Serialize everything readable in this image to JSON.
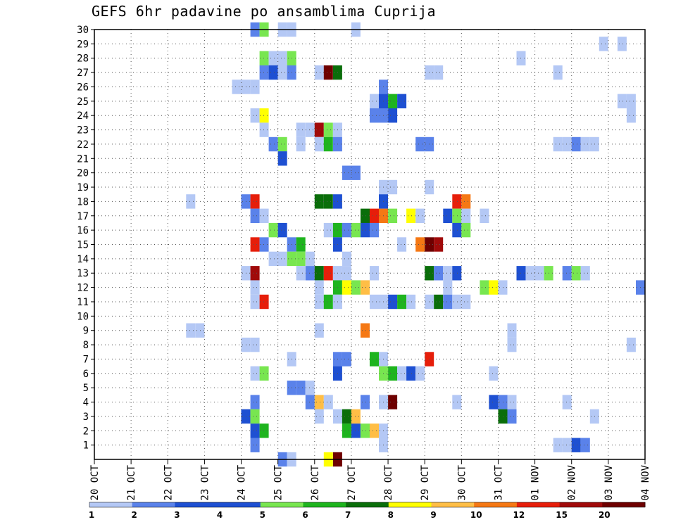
{
  "chart_data": {
    "type": "heatmap",
    "title": "GEFS 6hr padavine po ansamblima Cuprija",
    "x_tick_labels": [
      "20 OCT",
      "21 OCT",
      "22 OCT",
      "23 OCT",
      "24 OCT",
      "25 OCT",
      "26 OCT",
      "27 OCT",
      "28 OCT",
      "29 OCT",
      "30 OCT",
      "31 OCT",
      "01 NOV",
      "02 NOV",
      "03 NOV",
      "04 NOV"
    ],
    "x_range_days": [
      0,
      15
    ],
    "y_tick_labels": [
      "1",
      "2",
      "3",
      "4",
      "5",
      "6",
      "7",
      "8",
      "9",
      "10",
      "11",
      "12",
      "13",
      "14",
      "15",
      "16",
      "17",
      "18",
      "19",
      "20",
      "21",
      "22",
      "23",
      "24",
      "25",
      "26",
      "27",
      "28",
      "29",
      "30"
    ],
    "y_range": [
      0,
      30
    ],
    "grid": true,
    "colorbar": {
      "labels": [
        "1",
        "2",
        "3",
        "4",
        "5",
        "6",
        "7",
        "8",
        "9",
        "10",
        "12",
        "15",
        "20"
      ],
      "colors": [
        "#b4c8f5",
        "#5a82ea",
        "#1e50d2",
        "#1e50d2",
        "#78e650",
        "#1eb41e",
        "#0a6e0a",
        "#ffff00",
        "#ffbe46",
        "#f57814",
        "#e61e0a",
        "#a00a0a",
        "#6e0000"
      ]
    },
    "cell_width_days": 0.25,
    "cells": [
      [
        4.25,
        30,
        1
      ],
      [
        4.5,
        30,
        4
      ],
      [
        5.0,
        30,
        0
      ],
      [
        5.25,
        30,
        0
      ],
      [
        7.0,
        30,
        0
      ],
      [
        13.75,
        29,
        0
      ],
      [
        14.25,
        29,
        0
      ],
      [
        4.5,
        28,
        4
      ],
      [
        4.75,
        28,
        0
      ],
      [
        5.0,
        28,
        0
      ],
      [
        5.25,
        28,
        4
      ],
      [
        11.5,
        28,
        0
      ],
      [
        4.5,
        27,
        1
      ],
      [
        4.75,
        27,
        2
      ],
      [
        5.0,
        27,
        0
      ],
      [
        5.25,
        27,
        1
      ],
      [
        6.0,
        27,
        0
      ],
      [
        6.25,
        27,
        12
      ],
      [
        6.5,
        27,
        6
      ],
      [
        9.0,
        27,
        0
      ],
      [
        9.25,
        27,
        0
      ],
      [
        12.5,
        27,
        0
      ],
      [
        3.75,
        26,
        0
      ],
      [
        4.0,
        26,
        0
      ],
      [
        4.25,
        26,
        0
      ],
      [
        7.75,
        26,
        1
      ],
      [
        7.5,
        25,
        0
      ],
      [
        7.75,
        25,
        2
      ],
      [
        8.0,
        25,
        5
      ],
      [
        8.25,
        25,
        2
      ],
      [
        14.25,
        25,
        0
      ],
      [
        14.5,
        25,
        0
      ],
      [
        4.25,
        24,
        0
      ],
      [
        4.5,
        24,
        7
      ],
      [
        7.5,
        24,
        1
      ],
      [
        7.75,
        24,
        1
      ],
      [
        8.0,
        24,
        2
      ],
      [
        14.5,
        24,
        0
      ],
      [
        4.5,
        23,
        0
      ],
      [
        5.5,
        23,
        0
      ],
      [
        5.75,
        23,
        0
      ],
      [
        6.0,
        23,
        11
      ],
      [
        6.25,
        23,
        4
      ],
      [
        6.5,
        23,
        0
      ],
      [
        4.75,
        22,
        1
      ],
      [
        5.0,
        22,
        4
      ],
      [
        5.5,
        22,
        0
      ],
      [
        6.0,
        22,
        0
      ],
      [
        6.25,
        22,
        5
      ],
      [
        6.5,
        22,
        1
      ],
      [
        8.75,
        22,
        1
      ],
      [
        9.0,
        22,
        1
      ],
      [
        12.5,
        22,
        0
      ],
      [
        12.75,
        22,
        0
      ],
      [
        13.0,
        22,
        1
      ],
      [
        13.25,
        22,
        0
      ],
      [
        13.5,
        22,
        0
      ],
      [
        5.0,
        21,
        2
      ],
      [
        6.75,
        20,
        1
      ],
      [
        7.0,
        20,
        1
      ],
      [
        7.75,
        19,
        0
      ],
      [
        8.0,
        19,
        0
      ],
      [
        9.0,
        19,
        0
      ],
      [
        2.5,
        18,
        0
      ],
      [
        4.0,
        18,
        1
      ],
      [
        4.25,
        18,
        10
      ],
      [
        6.0,
        18,
        6
      ],
      [
        6.25,
        18,
        6
      ],
      [
        6.5,
        18,
        2
      ],
      [
        7.75,
        18,
        2
      ],
      [
        9.75,
        18,
        10
      ],
      [
        10.0,
        18,
        9
      ],
      [
        4.25,
        17,
        1
      ],
      [
        4.5,
        17,
        0
      ],
      [
        7.25,
        17,
        6
      ],
      [
        7.5,
        17,
        10
      ],
      [
        7.75,
        17,
        9
      ],
      [
        8.0,
        17,
        4
      ],
      [
        8.5,
        17,
        7
      ],
      [
        8.75,
        17,
        0
      ],
      [
        9.5,
        17,
        2
      ],
      [
        9.75,
        17,
        4
      ],
      [
        10.0,
        17,
        0
      ],
      [
        10.5,
        17,
        0
      ],
      [
        4.75,
        16,
        4
      ],
      [
        5.0,
        16,
        2
      ],
      [
        6.25,
        16,
        0
      ],
      [
        6.5,
        16,
        5
      ],
      [
        6.75,
        16,
        1
      ],
      [
        7.0,
        16,
        4
      ],
      [
        7.25,
        16,
        2
      ],
      [
        7.5,
        16,
        1
      ],
      [
        9.75,
        16,
        2
      ],
      [
        10.0,
        16,
        4
      ],
      [
        4.25,
        15,
        10
      ],
      [
        4.5,
        15,
        1
      ],
      [
        5.25,
        15,
        1
      ],
      [
        5.5,
        15,
        5
      ],
      [
        6.5,
        15,
        2
      ],
      [
        8.25,
        15,
        0
      ],
      [
        8.75,
        15,
        9
      ],
      [
        9.0,
        15,
        12
      ],
      [
        9.25,
        15,
        11
      ],
      [
        4.75,
        14,
        0
      ],
      [
        5.0,
        14,
        0
      ],
      [
        5.25,
        14,
        4
      ],
      [
        5.5,
        14,
        4
      ],
      [
        5.75,
        14,
        0
      ],
      [
        6.75,
        14,
        0
      ],
      [
        4.0,
        13,
        0
      ],
      [
        4.25,
        13,
        11
      ],
      [
        5.75,
        13,
        1
      ],
      [
        5.5,
        13,
        0
      ],
      [
        6.0,
        13,
        6
      ],
      [
        6.25,
        13,
        10
      ],
      [
        6.5,
        13,
        0
      ],
      [
        6.75,
        13,
        0
      ],
      [
        7.5,
        13,
        0
      ],
      [
        9.0,
        13,
        6
      ],
      [
        9.25,
        13,
        1
      ],
      [
        9.5,
        13,
        0
      ],
      [
        9.75,
        13,
        2
      ],
      [
        11.5,
        13,
        2
      ],
      [
        11.75,
        13,
        0
      ],
      [
        12.0,
        13,
        0
      ],
      [
        12.25,
        13,
        4
      ],
      [
        12.75,
        13,
        1
      ],
      [
        13.0,
        13,
        4
      ],
      [
        13.25,
        13,
        0
      ],
      [
        4.25,
        12,
        0
      ],
      [
        6.0,
        12,
        0
      ],
      [
        6.5,
        12,
        5
      ],
      [
        6.75,
        12,
        7
      ],
      [
        7.0,
        12,
        4
      ],
      [
        7.25,
        12,
        8
      ],
      [
        9.5,
        12,
        0
      ],
      [
        10.5,
        12,
        4
      ],
      [
        10.75,
        12,
        7
      ],
      [
        11.0,
        12,
        0
      ],
      [
        14.75,
        12,
        1
      ],
      [
        4.25,
        11,
        0
      ],
      [
        4.5,
        11,
        10
      ],
      [
        6.0,
        11,
        0
      ],
      [
        6.25,
        11,
        5
      ],
      [
        6.5,
        11,
        0
      ],
      [
        7.5,
        11,
        0
      ],
      [
        7.75,
        11,
        0
      ],
      [
        8.0,
        11,
        2
      ],
      [
        8.25,
        11,
        5
      ],
      [
        8.5,
        11,
        0
      ],
      [
        9.0,
        11,
        0
      ],
      [
        9.25,
        11,
        6
      ],
      [
        9.5,
        11,
        1
      ],
      [
        9.75,
        11,
        0
      ],
      [
        10.0,
        11,
        0
      ],
      [
        2.5,
        9,
        0
      ],
      [
        2.75,
        9,
        0
      ],
      [
        6.0,
        9,
        0
      ],
      [
        7.25,
        9,
        9
      ],
      [
        11.25,
        9,
        0
      ],
      [
        4.0,
        8,
        0
      ],
      [
        4.25,
        8,
        0
      ],
      [
        11.25,
        8,
        0
      ],
      [
        14.5,
        8,
        0
      ],
      [
        5.25,
        7,
        0
      ],
      [
        6.5,
        7,
        1
      ],
      [
        6.75,
        7,
        1
      ],
      [
        7.5,
        7,
        5
      ],
      [
        7.75,
        7,
        0
      ],
      [
        9.0,
        7,
        10
      ],
      [
        4.25,
        6,
        0
      ],
      [
        4.5,
        6,
        4
      ],
      [
        6.5,
        6,
        2
      ],
      [
        7.75,
        6,
        4
      ],
      [
        8.0,
        6,
        5
      ],
      [
        8.25,
        6,
        0
      ],
      [
        8.5,
        6,
        2
      ],
      [
        8.75,
        6,
        0
      ],
      [
        10.75,
        6,
        0
      ],
      [
        5.25,
        5,
        1
      ],
      [
        5.5,
        5,
        1
      ],
      [
        5.75,
        5,
        0
      ],
      [
        4.25,
        4,
        1
      ],
      [
        5.75,
        4,
        1
      ],
      [
        6.0,
        4,
        8
      ],
      [
        6.25,
        4,
        0
      ],
      [
        7.25,
        4,
        1
      ],
      [
        7.75,
        4,
        0
      ],
      [
        8.0,
        4,
        12
      ],
      [
        9.75,
        4,
        0
      ],
      [
        10.75,
        4,
        2
      ],
      [
        11.0,
        4,
        1
      ],
      [
        11.25,
        4,
        0
      ],
      [
        12.75,
        4,
        0
      ],
      [
        4.0,
        3,
        2
      ],
      [
        4.25,
        3,
        4
      ],
      [
        6.0,
        3,
        0
      ],
      [
        6.5,
        3,
        0
      ],
      [
        6.75,
        3,
        6
      ],
      [
        7.0,
        3,
        8
      ],
      [
        11.0,
        3,
        6
      ],
      [
        11.25,
        3,
        1
      ],
      [
        13.5,
        3,
        0
      ],
      [
        4.25,
        2,
        2
      ],
      [
        4.5,
        2,
        5
      ],
      [
        6.75,
        2,
        5
      ],
      [
        7.0,
        2,
        2
      ],
      [
        7.25,
        2,
        4
      ],
      [
        7.5,
        2,
        8
      ],
      [
        7.75,
        2,
        0
      ],
      [
        4.25,
        1,
        1
      ],
      [
        7.75,
        1,
        0
      ],
      [
        12.5,
        1,
        0
      ],
      [
        12.75,
        1,
        0
      ],
      [
        13.0,
        1,
        2
      ],
      [
        13.25,
        1,
        1
      ],
      [
        5.0,
        0,
        1
      ],
      [
        5.25,
        0,
        0
      ],
      [
        6.25,
        0,
        7
      ],
      [
        6.5,
        0,
        12
      ]
    ]
  }
}
